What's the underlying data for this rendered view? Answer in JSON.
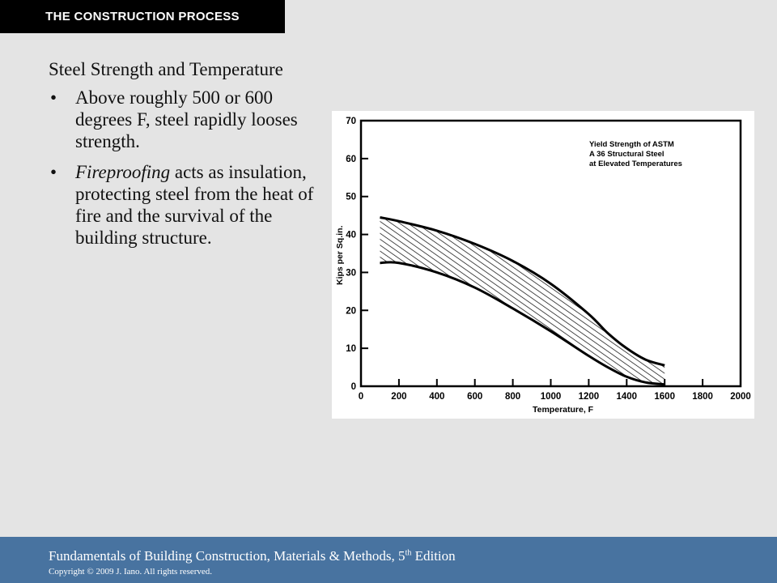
{
  "header": {
    "title": "The Construction Process"
  },
  "slide": {
    "subtitle": "Steel Strength and Temperature",
    "bullets": [
      {
        "emph": "",
        "text": "Above roughly 500 or 600 degrees F, steel rapidly looses strength."
      },
      {
        "emph": "Fireproofing",
        "text": " acts as insulation, protecting steel from the heat of fire and the survival of the building structure."
      }
    ]
  },
  "chart_data": {
    "type": "area",
    "title": "Yield Strength of ASTM A 36 Structural Steel at Elevated Temperatures",
    "xlabel": "Temperature, F",
    "ylabel": "Kips per Sq.in.",
    "xlim": [
      0,
      2000
    ],
    "ylim": [
      0,
      70
    ],
    "x_ticks": [
      0,
      200,
      400,
      600,
      800,
      1000,
      1200,
      1400,
      1600,
      1800,
      2000
    ],
    "y_ticks": [
      0,
      10,
      20,
      30,
      40,
      50,
      60,
      70
    ],
    "band": {
      "x": [
        100,
        200,
        400,
        600,
        800,
        1000,
        1200,
        1300,
        1400,
        1500,
        1600
      ],
      "upper": [
        44.5,
        43.5,
        41,
        37.5,
        33,
        27,
        19,
        14,
        10,
        7,
        5.5
      ],
      "lower": [
        32.5,
        32.5,
        30,
        26,
        20.5,
        14.5,
        8,
        5,
        2.5,
        1,
        0.5
      ]
    },
    "grid": false,
    "fill": "hatched",
    "colors": {
      "line": "#000000",
      "background": "#ffffff"
    }
  },
  "footer": {
    "book_title": "Fundamentals of Building Construction, Materials & Methods, 5",
    "edition_sup": "th",
    "edition_suffix": " Edition",
    "copyright": "Copyright © 2009 J. Iano. All rights reserved."
  }
}
